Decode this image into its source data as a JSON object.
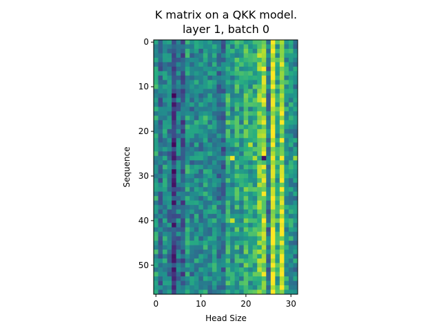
{
  "chart_data": {
    "type": "heatmap",
    "title_lines": [
      "K matrix on a QKK model.",
      "layer 1, batch 0"
    ],
    "xlabel": "Head Size",
    "ylabel": "Sequence",
    "xlim": [
      -0.5,
      31.5
    ],
    "ylim": [
      56.5,
      -0.5
    ],
    "x_ticks": [
      0,
      10,
      20,
      30
    ],
    "y_ticks": [
      0,
      10,
      20,
      30,
      40,
      50
    ],
    "rows": 57,
    "cols": 32,
    "colormap": "viridis",
    "column_profile": [
      0.55,
      0.38,
      0.5,
      0.42,
      0.18,
      0.4,
      0.3,
      0.55,
      0.44,
      0.5,
      0.46,
      0.55,
      0.48,
      0.52,
      0.4,
      0.35,
      0.62,
      0.52,
      0.6,
      0.55,
      0.66,
      0.58,
      0.62,
      0.75,
      0.84,
      0.4,
      0.95,
      0.62,
      0.9,
      0.55,
      0.52,
      0.48
    ],
    "outlier_cells": [
      {
        "row": 26,
        "col": 17,
        "level": 0.98
      },
      {
        "row": 26,
        "col": 22,
        "level": 0.88
      },
      {
        "row": 26,
        "col": 24,
        "level": 0.05
      },
      {
        "row": 26,
        "col": 31,
        "level": 0.85
      },
      {
        "row": 40,
        "col": 17,
        "level": 0.92
      },
      {
        "row": 23,
        "col": 21,
        "level": 0.9
      }
    ]
  }
}
